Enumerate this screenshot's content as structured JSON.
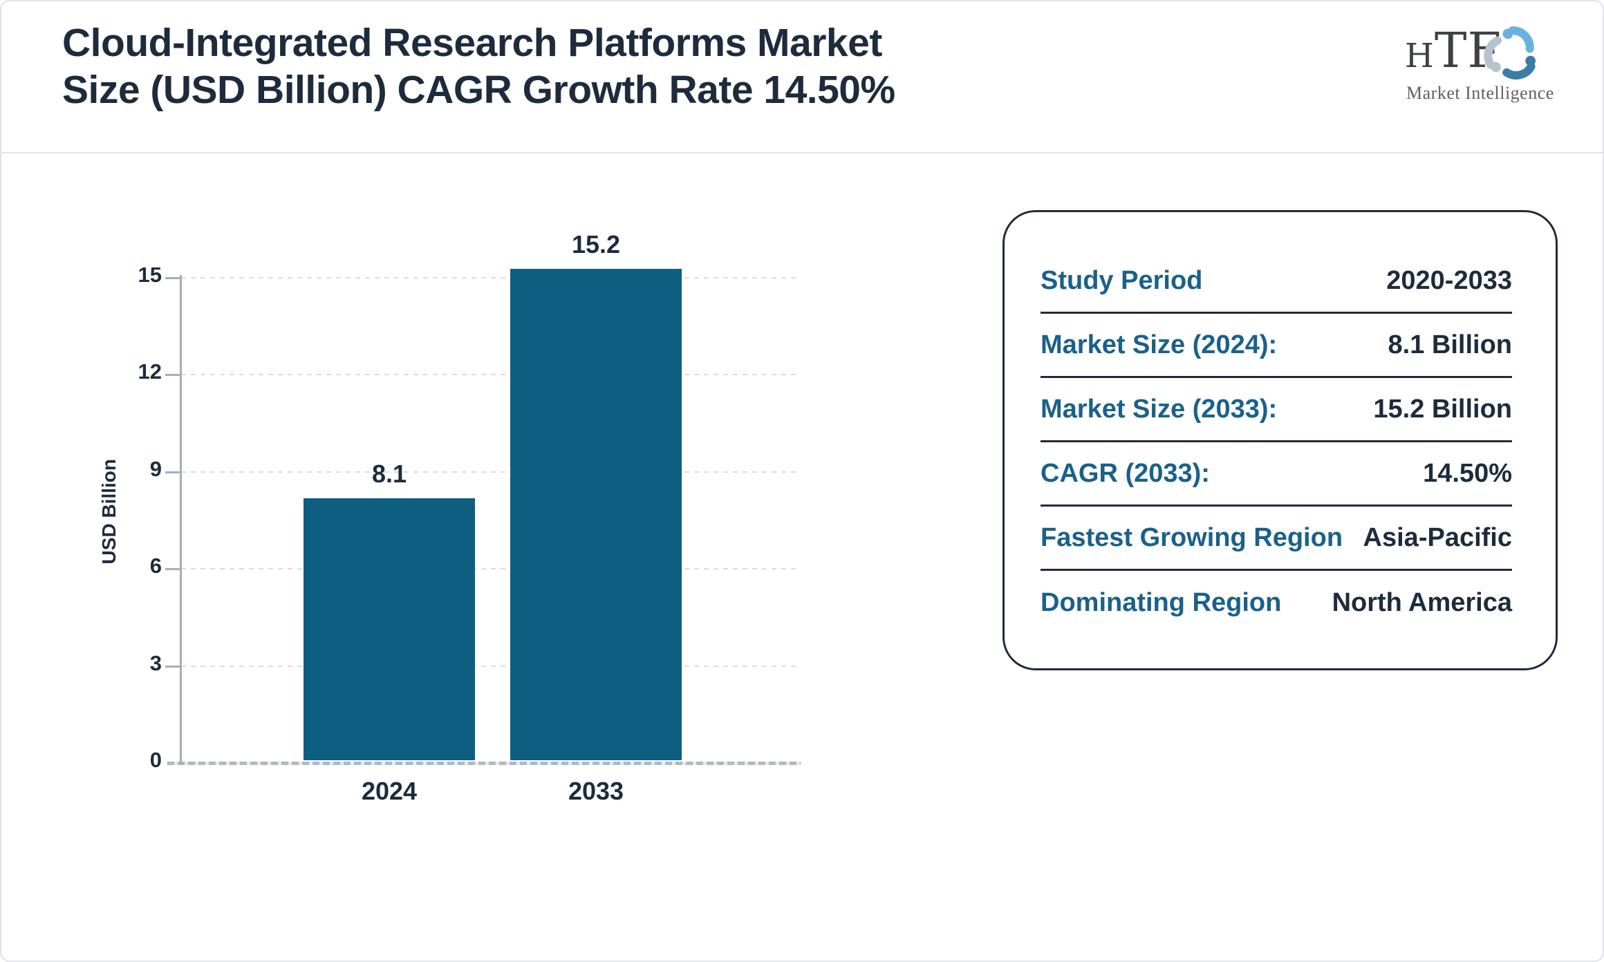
{
  "header": {
    "title_line1": "Cloud-Integrated Research Platforms Market",
    "title_line2": "Size (USD Billion) CAGR Growth Rate 14.50%"
  },
  "logo": {
    "name": "HTF",
    "tagline": "Market Intelligence"
  },
  "chart_data": {
    "type": "bar",
    "categories": [
      "2024",
      "2033"
    ],
    "values": [
      8.1,
      15.2
    ],
    "title": "",
    "xlabel": "",
    "ylabel": "USD Billion",
    "yticks_top_to_bottom": [
      15,
      12,
      9,
      6,
      3,
      0
    ],
    "ylim": [
      0,
      15.2
    ],
    "grid": true,
    "bar_color": "#0e5e81"
  },
  "panel": {
    "rows": [
      {
        "label": "Study Period",
        "value": "2020-2033"
      },
      {
        "label": "Market Size (2024):",
        "value": "8.1 Billion"
      },
      {
        "label": "Market Size (2033):",
        "value": "15.2 Billion"
      },
      {
        "label": "CAGR (2033):",
        "value": "14.50%"
      },
      {
        "label": "Fastest Growing Region",
        "value": "Asia-Pacific"
      },
      {
        "label": "Dominating Region",
        "value": "North America"
      }
    ]
  },
  "colors": {
    "bar": "#0e5e81",
    "navy_text": "#1e2b3c",
    "panel_label_teal": "#19618a",
    "axis_gray": "#a8acb6",
    "logo_light_blue": "#6ab2de",
    "logo_steel_blue": "#3e7ca8",
    "logo_gray_blue": "#b6c3cf"
  }
}
